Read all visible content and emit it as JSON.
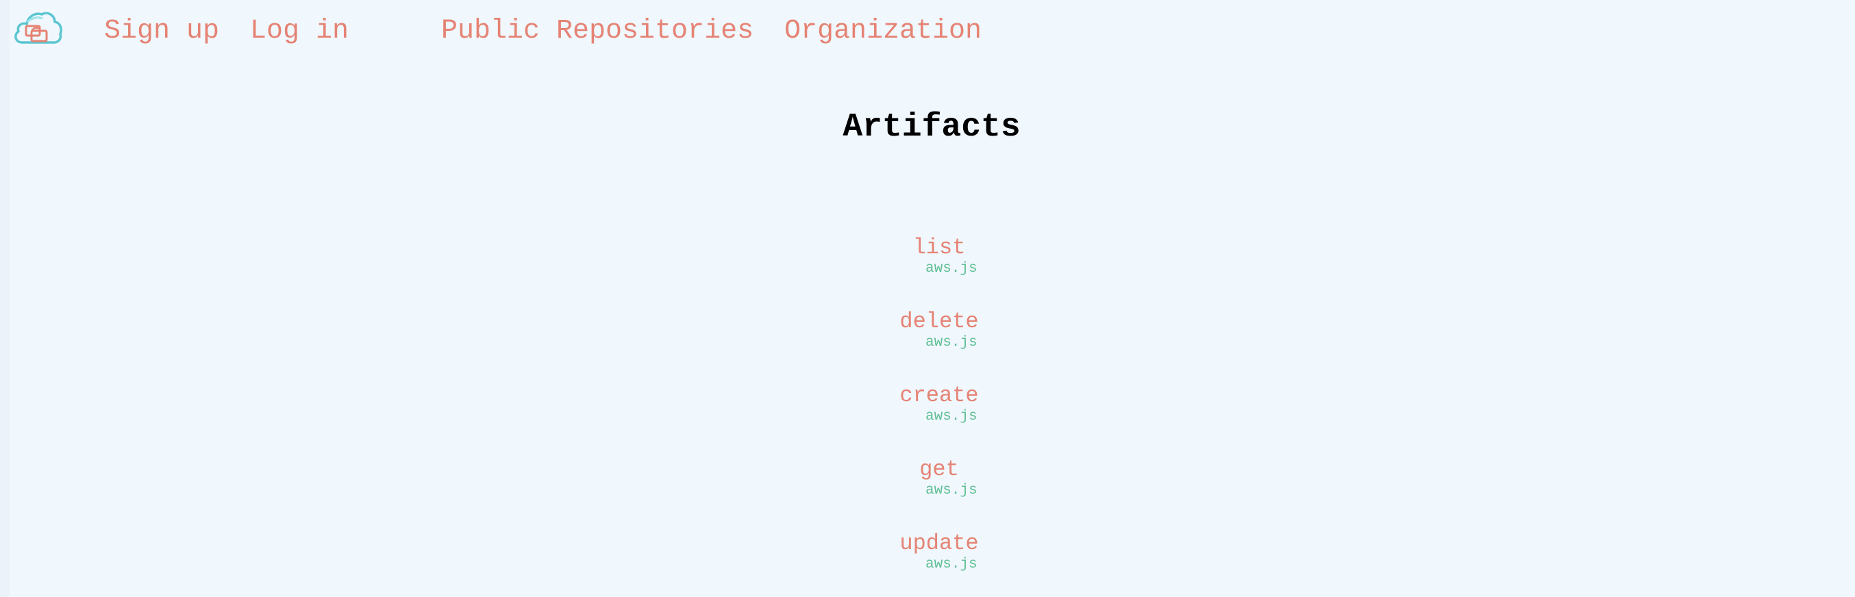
{
  "nav": {
    "logo_icon": "cloud-folders-icon",
    "sign_up": "Sign up",
    "log_in": "Log in",
    "public_repositories": "Public Repositories",
    "organization": "Organization"
  },
  "main": {
    "title": "Artifacts",
    "artifacts": [
      {
        "name": "list",
        "source": "aws.js"
      },
      {
        "name": "delete",
        "source": "aws.js"
      },
      {
        "name": "create",
        "source": "aws.js"
      },
      {
        "name": "get",
        "source": "aws.js"
      },
      {
        "name": "update",
        "source": "aws.js"
      }
    ]
  },
  "colors": {
    "background": "#f0f7fd",
    "link": "#e58374",
    "source": "#5fbf94",
    "logo_cloud": "#5bc6d0",
    "logo_folders": "#e58374"
  }
}
